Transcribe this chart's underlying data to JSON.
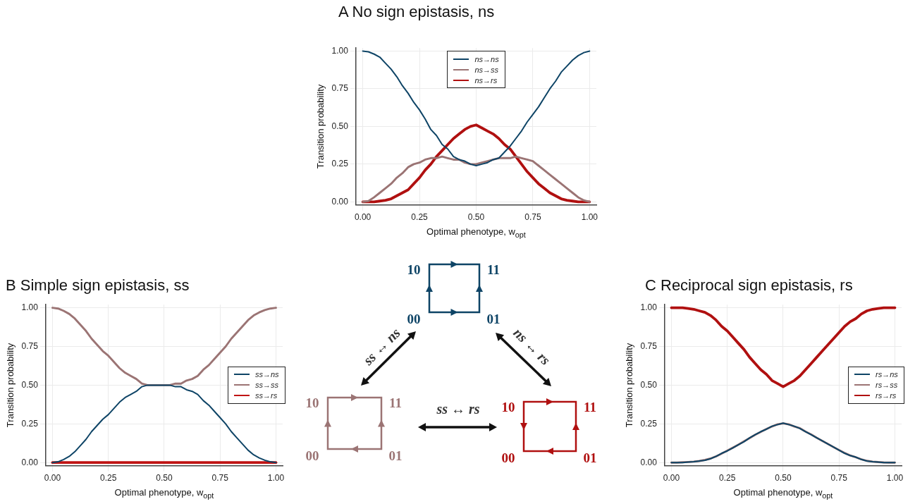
{
  "chart_data": [
    {
      "type": "line",
      "title": "A No sign epistasis, ns",
      "xlabel": "Optimal phenotype, w$_{opt}$",
      "ylabel": "Transition probability",
      "x": [
        0,
        0.025,
        0.05,
        0.075,
        0.1,
        0.125,
        0.15,
        0.175,
        0.2,
        0.225,
        0.25,
        0.275,
        0.3,
        0.325,
        0.35,
        0.375,
        0.4,
        0.425,
        0.45,
        0.475,
        0.5,
        0.525,
        0.55,
        0.575,
        0.6,
        0.625,
        0.65,
        0.675,
        0.7,
        0.725,
        0.75,
        0.775,
        0.8,
        0.825,
        0.85,
        0.875,
        0.9,
        0.925,
        0.95,
        0.975,
        1
      ],
      "series": [
        {
          "name": "ns→ns",
          "color": "#0e4466",
          "values": [
            1,
            0.995,
            0.98,
            0.96,
            0.92,
            0.88,
            0.83,
            0.77,
            0.72,
            0.66,
            0.61,
            0.55,
            0.48,
            0.44,
            0.38,
            0.35,
            0.3,
            0.28,
            0.27,
            0.25,
            0.24,
            0.25,
            0.26,
            0.28,
            0.29,
            0.33,
            0.37,
            0.42,
            0.47,
            0.53,
            0.58,
            0.63,
            0.69,
            0.75,
            0.8,
            0.86,
            0.9,
            0.94,
            0.97,
            0.99,
            1
          ]
        },
        {
          "name": "ns→ss",
          "color": "#9b7474",
          "values": [
            0,
            0.005,
            0.03,
            0.06,
            0.09,
            0.12,
            0.16,
            0.19,
            0.23,
            0.25,
            0.26,
            0.28,
            0.29,
            0.29,
            0.3,
            0.29,
            0.28,
            0.28,
            0.26,
            0.25,
            0.25,
            0.26,
            0.27,
            0.28,
            0.29,
            0.29,
            0.29,
            0.3,
            0.29,
            0.28,
            0.27,
            0.24,
            0.21,
            0.18,
            0.15,
            0.12,
            0.09,
            0.06,
            0.03,
            0.01,
            0
          ]
        },
        {
          "name": "ns→rs",
          "color": "#b01010",
          "values": [
            0,
            0,
            0,
            0.005,
            0.01,
            0.02,
            0.04,
            0.06,
            0.08,
            0.12,
            0.16,
            0.21,
            0.25,
            0.3,
            0.34,
            0.38,
            0.42,
            0.45,
            0.48,
            0.5,
            0.51,
            0.49,
            0.47,
            0.45,
            0.42,
            0.38,
            0.35,
            0.3,
            0.25,
            0.2,
            0.16,
            0.12,
            0.09,
            0.06,
            0.04,
            0.02,
            0.01,
            0.005,
            0,
            0,
            0
          ]
        }
      ],
      "xlim": [
        -0.03,
        1.03
      ],
      "xticks": [
        {
          "value": 0,
          "label": "0.00"
        },
        {
          "value": 0.25,
          "label": "0.25"
        },
        {
          "value": 0.5,
          "label": "0.50"
        },
        {
          "value": 0.75,
          "label": "0.75"
        },
        {
          "value": 1,
          "label": "1.00"
        }
      ],
      "ylim": [
        -0.02,
        1.02
      ],
      "yticks": [
        {
          "value": 0,
          "label": "0.00"
        },
        {
          "value": 0.25,
          "label": "0.25"
        },
        {
          "value": 0.5,
          "label": "0.50"
        },
        {
          "value": 0.75,
          "label": "0.75"
        },
        {
          "value": 1,
          "label": "1.00"
        }
      ],
      "grid": true,
      "legend": "top"
    },
    {
      "type": "line",
      "title": "B Simple sign epistasis, ss",
      "xlabel": "Optimal phenotype, w$_{opt}$",
      "ylabel": "Transition probability",
      "x": [
        0,
        0.025,
        0.05,
        0.075,
        0.1,
        0.125,
        0.15,
        0.175,
        0.2,
        0.225,
        0.25,
        0.275,
        0.3,
        0.325,
        0.35,
        0.375,
        0.4,
        0.425,
        0.45,
        0.475,
        0.5,
        0.525,
        0.55,
        0.575,
        0.6,
        0.625,
        0.65,
        0.675,
        0.7,
        0.725,
        0.75,
        0.775,
        0.8,
        0.825,
        0.85,
        0.875,
        0.9,
        0.925,
        0.95,
        0.975,
        1
      ],
      "series": [
        {
          "name": "ss→ns",
          "color": "#0e4466",
          "values": [
            0,
            0.005,
            0.02,
            0.04,
            0.07,
            0.11,
            0.15,
            0.2,
            0.24,
            0.28,
            0.31,
            0.35,
            0.39,
            0.42,
            0.44,
            0.46,
            0.49,
            0.5,
            0.5,
            0.5,
            0.5,
            0.5,
            0.49,
            0.49,
            0.47,
            0.46,
            0.44,
            0.4,
            0.37,
            0.33,
            0.29,
            0.25,
            0.2,
            0.16,
            0.12,
            0.08,
            0.05,
            0.03,
            0.015,
            0.005,
            0
          ]
        },
        {
          "name": "ss→ss",
          "color": "#9b7474",
          "values": [
            1,
            0.995,
            0.98,
            0.96,
            0.93,
            0.89,
            0.85,
            0.8,
            0.76,
            0.72,
            0.69,
            0.65,
            0.61,
            0.58,
            0.56,
            0.54,
            0.51,
            0.5,
            0.5,
            0.5,
            0.5,
            0.5,
            0.51,
            0.51,
            0.53,
            0.54,
            0.56,
            0.6,
            0.63,
            0.67,
            0.71,
            0.75,
            0.8,
            0.84,
            0.88,
            0.92,
            0.95,
            0.97,
            0.985,
            0.995,
            1
          ]
        },
        {
          "name": "ss→rs",
          "color": "#c01414",
          "values": [
            0,
            0,
            0,
            0,
            0,
            0,
            0,
            0,
            0,
            0,
            0,
            0,
            0,
            0,
            0,
            0,
            0,
            0,
            0,
            0,
            0,
            0,
            0,
            0,
            0,
            0,
            0,
            0,
            0,
            0,
            0,
            0,
            0,
            0,
            0,
            0,
            0,
            0,
            0,
            0,
            0
          ]
        }
      ],
      "xlim": [
        -0.03,
        1.03
      ],
      "xticks": [
        {
          "value": 0,
          "label": "0.00"
        },
        {
          "value": 0.25,
          "label": "0.25"
        },
        {
          "value": 0.5,
          "label": "0.50"
        },
        {
          "value": 0.75,
          "label": "0.75"
        },
        {
          "value": 1,
          "label": "1.00"
        }
      ],
      "ylim": [
        -0.02,
        1.02
      ],
      "yticks": [
        {
          "value": 0,
          "label": "0.00"
        },
        {
          "value": 0.25,
          "label": "0.25"
        },
        {
          "value": 0.5,
          "label": "0.50"
        },
        {
          "value": 0.75,
          "label": "0.75"
        },
        {
          "value": 1,
          "label": "1.00"
        }
      ],
      "grid": true,
      "legend": "right"
    },
    {
      "type": "line",
      "title": "C Reciprocal sign epistasis, rs",
      "xlabel": "Optimal phenotype, w$_{opt}$",
      "ylabel": "Transition probability",
      "x": [
        0,
        0.025,
        0.05,
        0.075,
        0.1,
        0.125,
        0.15,
        0.175,
        0.2,
        0.225,
        0.25,
        0.275,
        0.3,
        0.325,
        0.35,
        0.375,
        0.4,
        0.425,
        0.45,
        0.475,
        0.5,
        0.525,
        0.55,
        0.575,
        0.6,
        0.625,
        0.65,
        0.675,
        0.7,
        0.725,
        0.75,
        0.775,
        0.8,
        0.825,
        0.85,
        0.875,
        0.9,
        0.925,
        0.95,
        0.975,
        1
      ],
      "series": [
        {
          "name": "rs→ns",
          "color": "#0e4466",
          "values": [
            0,
            0,
            0,
            0.003,
            0.005,
            0.01,
            0.015,
            0.025,
            0.04,
            0.06,
            0.075,
            0.095,
            0.115,
            0.135,
            0.16,
            0.18,
            0.2,
            0.215,
            0.235,
            0.245,
            0.255,
            0.245,
            0.235,
            0.22,
            0.2,
            0.18,
            0.16,
            0.14,
            0.12,
            0.1,
            0.08,
            0.06,
            0.045,
            0.035,
            0.02,
            0.01,
            0.005,
            0.003,
            0,
            0,
            0
          ]
        },
        {
          "name": "rs→ss",
          "color": "#9b7474",
          "values": [
            0,
            0,
            0.002,
            0.004,
            0.006,
            0.01,
            0.017,
            0.026,
            0.04,
            0.058,
            0.077,
            0.096,
            0.116,
            0.137,
            0.158,
            0.18,
            0.198,
            0.217,
            0.233,
            0.247,
            0.253,
            0.247,
            0.233,
            0.222,
            0.2,
            0.182,
            0.16,
            0.14,
            0.12,
            0.1,
            0.081,
            0.062,
            0.046,
            0.034,
            0.021,
            0.011,
            0.006,
            0.003,
            0.001,
            0,
            0
          ]
        },
        {
          "name": "rs→rs",
          "color": "#b01010",
          "values": [
            1,
            1,
            1,
            0.995,
            0.99,
            0.98,
            0.97,
            0.95,
            0.92,
            0.88,
            0.85,
            0.81,
            0.77,
            0.73,
            0.68,
            0.64,
            0.6,
            0.57,
            0.53,
            0.51,
            0.49,
            0.51,
            0.53,
            0.56,
            0.6,
            0.64,
            0.68,
            0.72,
            0.76,
            0.8,
            0.84,
            0.88,
            0.91,
            0.93,
            0.96,
            0.98,
            0.99,
            0.995,
            1,
            1,
            1
          ]
        }
      ],
      "xlim": [
        -0.03,
        1.03
      ],
      "xticks": [
        {
          "value": 0,
          "label": "0.00"
        },
        {
          "value": 0.25,
          "label": "0.25"
        },
        {
          "value": 0.5,
          "label": "0.50"
        },
        {
          "value": 0.75,
          "label": "0.75"
        },
        {
          "value": 1,
          "label": "1.00"
        }
      ],
      "ylim": [
        -0.02,
        1.02
      ],
      "yticks": [
        {
          "value": 0,
          "label": "0.00"
        },
        {
          "value": 0.25,
          "label": "0.25"
        },
        {
          "value": 0.5,
          "label": "0.50"
        },
        {
          "value": 0.75,
          "label": "0.75"
        },
        {
          "value": 1,
          "label": "1.00"
        }
      ],
      "grid": true,
      "legend": "right"
    },
    {
      "type": "other",
      "annotations": [
        "10",
        "11",
        "00",
        "01",
        "10",
        "11",
        "00",
        "01",
        "10",
        "11",
        "00",
        "01",
        "ss ↔ ns",
        "ns ↔ rs",
        "ss ↔ rs"
      ]
    }
  ]
}
